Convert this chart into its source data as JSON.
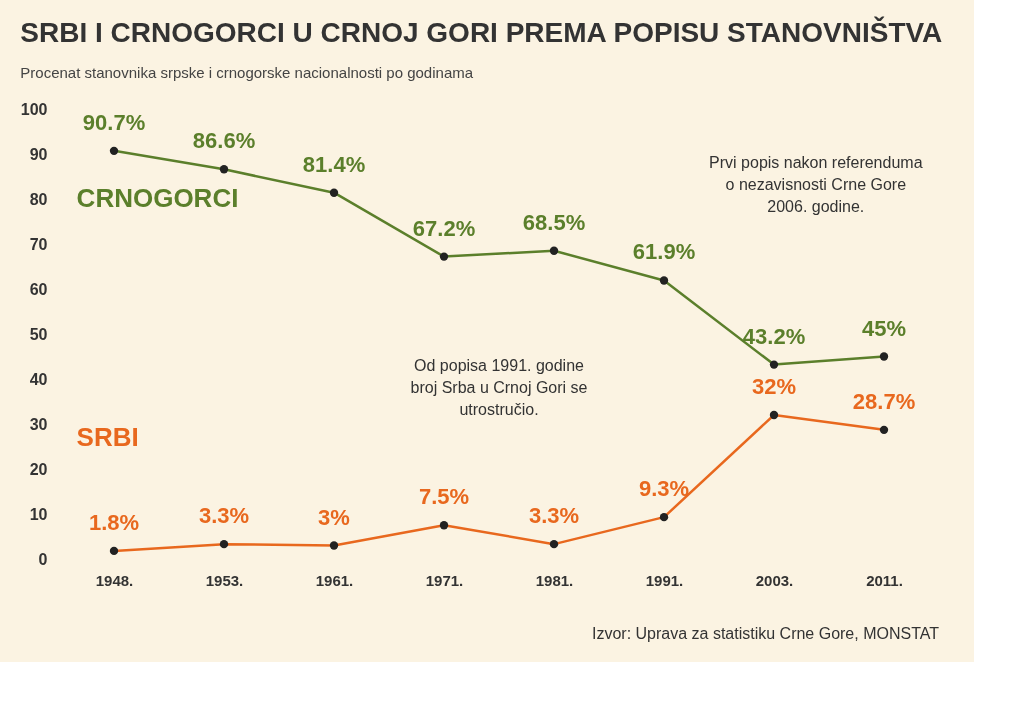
{
  "chart_data": {
    "type": "line",
    "title": "SRBI I CRNOGORCI U CRNOJ GORI PREMA POPISU STANOVNIŠTVA",
    "subtitle": "Procenat stanovnika srpske i crnogorske nacionalnosti po godinama",
    "categories": [
      "1948.",
      "1953.",
      "1961.",
      "1971.",
      "1981.",
      "1991.",
      "2003.",
      "2011."
    ],
    "ylim": [
      0,
      100
    ],
    "yticks": [
      0,
      10,
      20,
      30,
      40,
      50,
      60,
      70,
      80,
      90,
      100
    ],
    "marker": "circle",
    "series": [
      {
        "name": "CRNOGORCI",
        "color": "#5b7f2b",
        "values": [
          90.7,
          86.6,
          81.4,
          67.2,
          68.5,
          61.9,
          43.2,
          45
        ],
        "value_labels": [
          "90.7%",
          "86.6%",
          "81.4%",
          "67.2%",
          "68.5%",
          "61.9%",
          "43.2%",
          "45%"
        ]
      },
      {
        "name": "SRBI",
        "color": "#e8681e",
        "values": [
          1.8,
          3.3,
          3,
          7.5,
          3.3,
          9.3,
          32,
          28.7
        ],
        "value_labels": [
          "1.8%",
          "3.3%",
          "3%",
          "7.5%",
          "3.3%",
          "9.3%",
          "32%",
          "28.7%"
        ]
      }
    ],
    "annotations": [
      "Prvi popis nakon referenduma\no nezavisnosti Crne Gore\n2006. godine.",
      "Od popisa 1991. godine\nbroj Srba u Crnoj Gori se\nutrostručio.",
      "Izvor: Uprava za statistiku Crne Gore, MONSTAT"
    ]
  }
}
